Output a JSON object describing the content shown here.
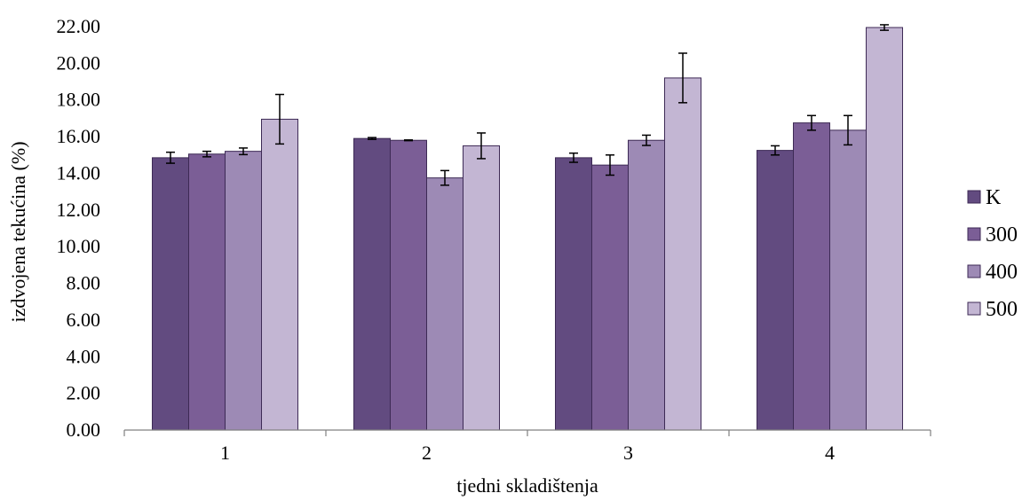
{
  "chart_data": {
    "type": "bar",
    "title": "",
    "xlabel": "tjedni skladištenja",
    "ylabel": "izdvojena tekućina (%)",
    "ylim": [
      0,
      22
    ],
    "ytick_step": 2,
    "ytick_labels": [
      "0.00",
      "2.00",
      "4.00",
      "6.00",
      "8.00",
      "10.00",
      "12.00",
      "14.00",
      "16.00",
      "18.00",
      "20.00",
      "22.00"
    ],
    "categories": [
      "1",
      "2",
      "3",
      "4"
    ],
    "legend_position": "right",
    "grid": false,
    "series": [
      {
        "name": "K",
        "color": "#624b80",
        "values": [
          14.85,
          15.9,
          14.85,
          15.25
        ],
        "errors": [
          0.3,
          0.05,
          0.25,
          0.25
        ]
      },
      {
        "name": "300",
        "color": "#7b5e96",
        "values": [
          15.05,
          15.8,
          14.45,
          16.75
        ],
        "errors": [
          0.15,
          0.02,
          0.55,
          0.4
        ]
      },
      {
        "name": "400",
        "color": "#9d8ab5",
        "values": [
          15.2,
          13.75,
          15.8,
          16.35
        ],
        "errors": [
          0.18,
          0.4,
          0.28,
          0.8
        ]
      },
      {
        "name": "500",
        "color": "#c3b6d3",
        "values": [
          16.95,
          15.5,
          19.2,
          21.95
        ],
        "errors": [
          1.35,
          0.7,
          1.35,
          0.15
        ]
      }
    ]
  }
}
